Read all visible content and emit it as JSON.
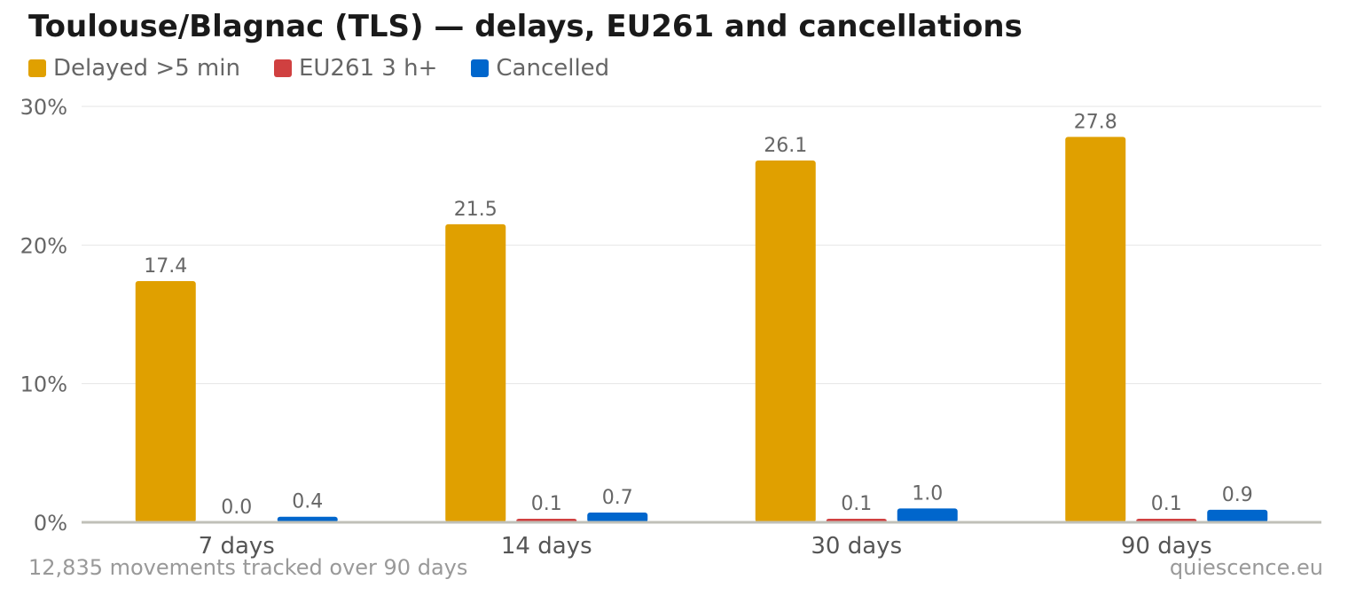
{
  "chart_data": {
    "type": "bar",
    "title": "Toulouse/Blagnac (TLS) — delays, EU261 and cancellations",
    "categories": [
      "7 days",
      "14 days",
      "30 days",
      "90 days"
    ],
    "series": [
      {
        "name": "Delayed >5 min",
        "color": "#e0a000",
        "values": [
          17.4,
          21.5,
          26.1,
          27.8
        ],
        "labels": [
          "17.4",
          "21.5",
          "26.1",
          "27.8"
        ]
      },
      {
        "name": "EU261 3 h+",
        "color": "#d04040",
        "values": [
          0.0,
          0.1,
          0.1,
          0.1
        ],
        "labels": [
          "0.0",
          "0.1",
          "0.1",
          "0.1"
        ]
      },
      {
        "name": "Cancelled",
        "color": "#0066cc",
        "values": [
          0.4,
          0.7,
          1.0,
          0.9
        ],
        "labels": [
          "0.4",
          "0.7",
          "1.0",
          "0.9"
        ]
      }
    ],
    "ylim": [
      0,
      30
    ],
    "yticks": [
      0,
      10,
      20,
      30
    ],
    "ytick_labels": [
      "0%",
      "10%",
      "20%",
      "30%"
    ],
    "grid": true,
    "legend_position": "top-left"
  },
  "footer": {
    "note": "12,835 movements tracked over 90 days",
    "source": "quiescence.eu"
  }
}
